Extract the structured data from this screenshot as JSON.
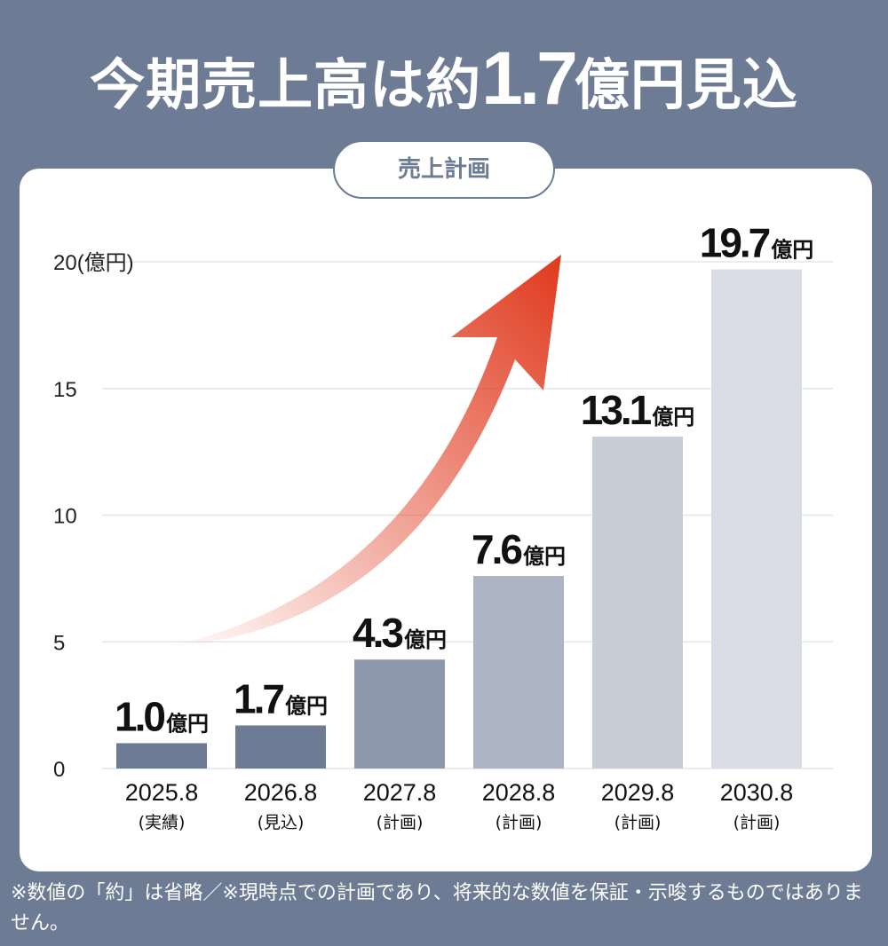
{
  "title": {
    "prefix": "今期売上高は約",
    "value": "1.7",
    "suffix": "億円見込"
  },
  "pill_label": "売上計画",
  "colors": {
    "background": "#6e7b95",
    "bars": [
      "#6e7b95",
      "#6e7b95",
      "#8e98ad",
      "#adb4c4",
      "#c9cdd7",
      "#dadde5"
    ],
    "arrow": "#e03a1e"
  },
  "chart_data": {
    "type": "bar",
    "title": "売上計画",
    "ylabel": "(億円)",
    "ylim": [
      0,
      20
    ],
    "yticks": [
      "0",
      "5",
      "10",
      "15",
      "20(億円)"
    ],
    "ytick_values": [
      0,
      5,
      10,
      15,
      20
    ],
    "categories": [
      "2025.8",
      "2026.8",
      "2027.8",
      "2028.8",
      "2029.8",
      "2030.8"
    ],
    "sublabels": [
      "(実績)",
      "(見込)",
      "(計画)",
      "(計画)",
      "(計画)",
      "(計画)"
    ],
    "values": [
      1.0,
      1.7,
      4.3,
      7.6,
      13.1,
      19.7
    ],
    "value_labels": [
      "1.0",
      "1.7",
      "4.3",
      "7.6",
      "13.1",
      "19.7"
    ],
    "unit": "億円",
    "grid": true
  },
  "footnote": "※数値の「約」は省略／※現時点での計画であり、将来的な数値を保証・示唆するものではありません。"
}
